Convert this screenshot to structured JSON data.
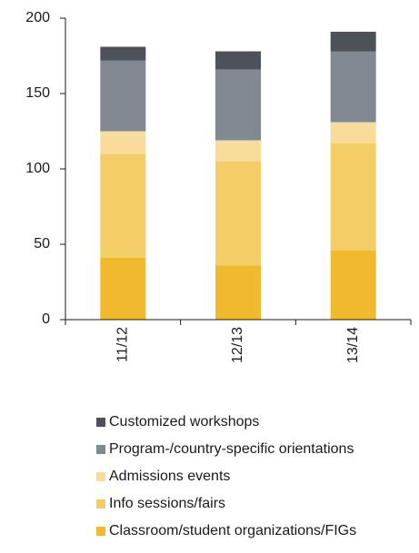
{
  "chart_data": {
    "type": "stacked_bar",
    "categories": [
      "11/12",
      "12/13",
      "13/14"
    ],
    "series": [
      {
        "name": "Classroom/student organizations/FIGs",
        "color": "#f0b92e",
        "values": [
          41,
          36,
          46
        ]
      },
      {
        "name": "Info sessions/fairs",
        "color": "#f5cd66",
        "values": [
          69,
          69,
          71
        ]
      },
      {
        "name": "Admissions events",
        "color": "#f8dc9a",
        "values": [
          15,
          14,
          14
        ]
      },
      {
        "name": "Program-/country-specific orientations",
        "color": "#808991",
        "values": [
          47,
          47,
          47
        ]
      },
      {
        "name": "Customized workshops",
        "color": "#4c5258",
        "values": [
          9,
          12,
          13
        ]
      }
    ],
    "ylim": [
      0,
      200
    ],
    "yticks": [
      0,
      50,
      100,
      150,
      200
    ]
  }
}
